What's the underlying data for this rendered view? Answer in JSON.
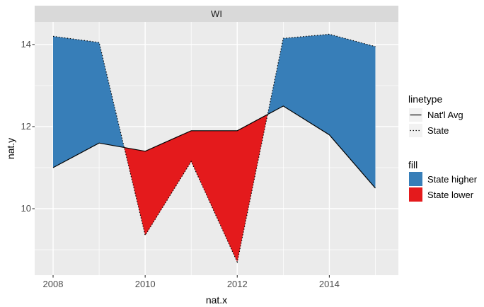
{
  "figure": {
    "facet_label": "WI",
    "x_axis_title": "nat.x",
    "y_axis_title": "nat.y"
  },
  "legend": {
    "linetype": {
      "title": "linetype",
      "items": [
        {
          "label": "Nat'l Avg",
          "linetype": "solid"
        },
        {
          "label": "State",
          "linetype": "dotted"
        }
      ]
    },
    "fill": {
      "title": "fill",
      "items": [
        {
          "label": "State higher",
          "color": "#377EB8"
        },
        {
          "label": "State lower",
          "color": "#E41A1C"
        }
      ]
    }
  },
  "chart_data": {
    "type": "area",
    "title": "WI",
    "xlabel": "nat.x",
    "ylabel": "nat.y",
    "x": [
      2008,
      2009,
      2010,
      2011,
      2012,
      2013,
      2014,
      2015
    ],
    "series": [
      {
        "name": "Nat'l Avg",
        "linetype": "solid",
        "values": [
          11.0,
          11.6,
          11.4,
          11.9,
          11.9,
          12.5,
          11.8,
          10.5
        ]
      },
      {
        "name": "State",
        "linetype": "dotted",
        "values": [
          14.2,
          14.05,
          9.35,
          11.15,
          8.7,
          14.15,
          14.25,
          13.95
        ]
      }
    ],
    "ribbon": {
      "higher_label": "State higher",
      "higher_color": "#377EB8",
      "lower_label": "State lower",
      "lower_color": "#E41A1C"
    },
    "x_ticks": [
      2008,
      2010,
      2012,
      2014
    ],
    "x_minor_ticks": [
      2009,
      2011,
      2013,
      2015
    ],
    "y_ticks": [
      10,
      12,
      14
    ],
    "y_minor_ticks": [
      9,
      11,
      13
    ],
    "xlim": [
      2007.6,
      2015.5
    ],
    "ylim": [
      8.38,
      14.55
    ],
    "grid": true,
    "legend_position": "right",
    "colors": {
      "panel_bg": "#EBEBEB",
      "strip_bg": "#D9D9D9",
      "grid": "#FFFFFF",
      "line": "#000000",
      "tick": "#333333",
      "tick_label": "#4D4D4D"
    }
  }
}
